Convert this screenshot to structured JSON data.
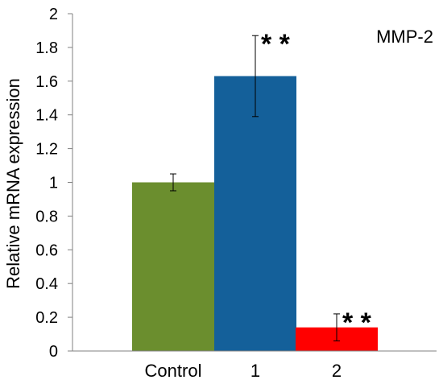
{
  "chart_data": {
    "type": "bar",
    "title": "",
    "annotation": "MMP-2",
    "xlabel": "",
    "ylabel": "Relative mRNA expression",
    "ylim": [
      0,
      2
    ],
    "yticks": [
      "0",
      "0.2",
      "0.4",
      "0.6",
      "0.8",
      "1",
      "1.2",
      "1.4",
      "1.6",
      "1.8",
      "2"
    ],
    "categories": [
      "Control",
      "1",
      "2"
    ],
    "values": [
      1.0,
      1.63,
      0.14
    ],
    "errors": [
      0.05,
      0.24,
      0.08
    ],
    "significance": [
      "",
      "**",
      "**"
    ],
    "colors": [
      "#6b8e2e",
      "#14609a",
      "#ff0000"
    ],
    "grid": false,
    "legend": "none"
  }
}
